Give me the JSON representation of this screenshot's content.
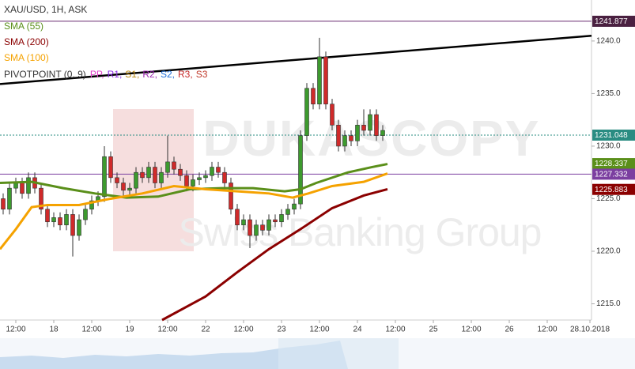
{
  "chart_data": {
    "type": "candlestick",
    "title": "XAU/USD, 1H, ASK",
    "xlim": [
      0,
      187
    ],
    "ylim": [
      1213.46,
      1243.9
    ],
    "yticks": [
      {
        "value": 1215,
        "label": "1215.0"
      },
      {
        "value": 1220,
        "label": "1220.0"
      },
      {
        "value": 1225,
        "label": "1225.0"
      },
      {
        "value": 1230,
        "label": "1230.0"
      },
      {
        "value": 1235,
        "label": "1235.0"
      },
      {
        "value": 1240,
        "label": "1240.0"
      }
    ],
    "xticks": [
      {
        "value": 5,
        "label": "12:00"
      },
      {
        "value": 17,
        "label": "18"
      },
      {
        "value": 29,
        "label": "12:00"
      },
      {
        "value": 41,
        "label": "19"
      },
      {
        "value": 53,
        "label": "12:00"
      },
      {
        "value": 65,
        "label": "22"
      },
      {
        "value": 77,
        "label": "12:00"
      },
      {
        "value": 89,
        "label": "23"
      },
      {
        "value": 101,
        "label": "12:00"
      },
      {
        "value": 113,
        "label": "24"
      },
      {
        "value": 125,
        "label": "12:00"
      },
      {
        "value": 137,
        "label": "25"
      },
      {
        "value": 149,
        "label": "12:00"
      },
      {
        "value": 161,
        "label": "26"
      },
      {
        "value": 173,
        "label": "12:00"
      },
      {
        "value": 186.5,
        "label": "28.10.2018"
      }
    ],
    "up_color": "#3d9a2e",
    "down_color": "#d02a2a",
    "x": [
      1,
      3,
      5,
      7,
      9,
      11,
      13,
      15,
      17,
      19,
      21,
      23,
      25,
      27,
      29,
      31,
      33,
      35,
      37,
      39,
      41,
      43,
      45,
      47,
      49,
      51,
      53,
      55,
      57,
      59,
      61,
      63,
      65,
      67,
      69,
      71,
      73,
      75,
      77,
      79,
      81,
      83,
      85,
      87,
      89,
      91,
      93,
      95,
      97,
      99,
      101,
      103,
      105,
      107,
      109,
      111,
      113,
      115,
      117,
      119,
      121
    ],
    "open": [
      1225.0,
      1224.0,
      1226.0,
      1226.5,
      1225.5,
      1227.0,
      1226.0,
      1224.0,
      1222.8,
      1223.2,
      1222.5,
      1223.5,
      1221.5,
      1223.0,
      1224.0,
      1224.8,
      1225.2,
      1229.0,
      1227.0,
      1226.5,
      1225.8,
      1226.0,
      1227.5,
      1227.0,
      1228.0,
      1226.5,
      1227.5,
      1228.5,
      1227.8,
      1227.2,
      1226.2,
      1226.8,
      1227.0,
      1227.2,
      1228.0,
      1227.5,
      1226.5,
      1224.0,
      1222.5,
      1223.0,
      1221.5,
      1222.5,
      1222.0,
      1223.0,
      1222.8,
      1223.5,
      1224.0,
      1224.5,
      1231.0,
      1235.5,
      1234.0,
      1238.5,
      1234.0,
      1232.0,
      1230.0,
      1231.0,
      1230.5,
      1232.0,
      1231.5,
      1233.0,
      1231.0
    ],
    "high": [
      1225.5,
      1226.5,
      1227.0,
      1227.0,
      1227.5,
      1227.5,
      1226.5,
      1224.5,
      1223.7,
      1223.7,
      1224.0,
      1224.0,
      1223.5,
      1224.5,
      1225.3,
      1225.7,
      1230.0,
      1229.5,
      1227.5,
      1227.0,
      1226.5,
      1228.0,
      1228.0,
      1228.5,
      1228.5,
      1228.0,
      1231.0,
      1229.0,
      1228.3,
      1227.7,
      1227.3,
      1227.5,
      1227.7,
      1228.5,
      1228.5,
      1228.0,
      1227.0,
      1224.5,
      1223.5,
      1223.5,
      1223.0,
      1223.0,
      1223.5,
      1223.5,
      1224.0,
      1224.5,
      1225.0,
      1231.5,
      1236.0,
      1236.0,
      1240.3,
      1239.0,
      1234.5,
      1232.5,
      1231.5,
      1231.5,
      1232.5,
      1233.5,
      1233.5,
      1233.5,
      1232.0
    ],
    "low": [
      1223.5,
      1223.5,
      1225.5,
      1225.0,
      1225.0,
      1225.5,
      1223.5,
      1222.3,
      1222.3,
      1222.0,
      1222.0,
      1219.5,
      1221.0,
      1222.5,
      1223.5,
      1224.3,
      1224.7,
      1226.5,
      1226.0,
      1225.3,
      1225.3,
      1225.5,
      1226.5,
      1226.5,
      1226.0,
      1226.0,
      1227.0,
      1227.3,
      1226.7,
      1225.7,
      1225.7,
      1226.3,
      1226.5,
      1226.7,
      1227.0,
      1226.0,
      1223.5,
      1222.0,
      1222.0,
      1220.3,
      1221.0,
      1221.5,
      1221.5,
      1222.3,
      1222.3,
      1223.0,
      1223.5,
      1224.0,
      1230.5,
      1233.5,
      1233.5,
      1233.5,
      1231.5,
      1229.5,
      1229.5,
      1230.0,
      1230.0,
      1231.0,
      1231.0,
      1230.5,
      1230.5
    ],
    "close": [
      1224.0,
      1226.0,
      1226.5,
      1225.5,
      1227.0,
      1226.0,
      1224.0,
      1222.8,
      1223.2,
      1222.5,
      1223.5,
      1221.5,
      1223.0,
      1224.0,
      1224.8,
      1225.2,
      1229.0,
      1227.0,
      1226.5,
      1225.8,
      1226.0,
      1227.5,
      1227.0,
      1228.0,
      1226.5,
      1227.5,
      1228.5,
      1227.8,
      1227.2,
      1226.2,
      1226.8,
      1227.0,
      1227.2,
      1228.0,
      1227.5,
      1226.5,
      1224.0,
      1222.5,
      1223.0,
      1221.5,
      1222.5,
      1222.0,
      1223.0,
      1222.8,
      1223.5,
      1224.0,
      1224.5,
      1231.0,
      1235.5,
      1234.0,
      1238.5,
      1234.0,
      1232.0,
      1230.0,
      1231.0,
      1230.5,
      1232.0,
      1231.5,
      1233.0,
      1231.0,
      1231.5
    ],
    "series": [
      {
        "name": "SMA (55)",
        "color": "#5a8f1a",
        "x": [
          0,
          10,
          20,
          30,
          40,
          50,
          60,
          70,
          80,
          90,
          95,
          100,
          110,
          117.5,
          122.5
        ],
        "values": [
          1226.5,
          1226.6,
          1226.0,
          1225.5,
          1225.1,
          1225.2,
          1225.9,
          1226.0,
          1226.0,
          1225.7,
          1225.9,
          1226.5,
          1227.5,
          1228.0,
          1228.3
        ]
      },
      {
        "name": "SMA (200)",
        "color": "#8b0000",
        "x": [
          51.25,
          65,
          75,
          85,
          95,
          105,
          115,
          122.5
        ],
        "values": [
          1213.46,
          1215.7,
          1218.0,
          1220.2,
          1222.1,
          1224.1,
          1225.3,
          1225.9
        ]
      },
      {
        "name": "SMA (100)",
        "color": "#f5a200",
        "x": [
          0,
          5,
          10,
          15,
          25,
          35,
          45,
          55,
          65,
          75,
          85,
          92.5,
          97.5,
          105,
          115,
          122.5
        ],
        "values": [
          1220.2,
          1222.1,
          1224.2,
          1224.4,
          1224.4,
          1225.0,
          1225.5,
          1226.2,
          1225.9,
          1225.7,
          1225.5,
          1225.1,
          1225.5,
          1226.2,
          1226.6,
          1227.4
        ]
      }
    ],
    "pivot_label": "PIVOTPOINT (0, 9)",
    "pivot_items": [
      {
        "text": "PP,",
        "color": "#e040c8"
      },
      {
        "text": "R1,",
        "color": "#8a2be2"
      },
      {
        "text": "S1,",
        "color": "#b8860b"
      },
      {
        "text": "R2,",
        "color": "#9c27b0"
      },
      {
        "text": "S2,",
        "color": "#1e6fd9"
      },
      {
        "text": "R3,",
        "color": "#c62828"
      },
      {
        "text": "S3",
        "color": "#c0392b"
      }
    ],
    "trendline": {
      "x": [
        0,
        187
      ],
      "values": [
        1235.9,
        1240.5
      ],
      "color": "#000000"
    },
    "levels": [
      {
        "value": 1241.877,
        "color": "#6a2c70"
      },
      {
        "value": 1227.332,
        "color": "#7b3fa0"
      }
    ],
    "current_price": {
      "value": 1231.048,
      "color": "#2a8c82"
    },
    "price_tags": [
      {
        "value": 1241.877,
        "color": "#4a2040"
      },
      {
        "value": 1231.048,
        "color": "#2a8c82"
      },
      {
        "value": 1228.337,
        "color": "#5a8f1a"
      },
      {
        "value": 1227.332,
        "color": "#7b3fa0"
      },
      {
        "value": 1225.883,
        "color": "#8b0000"
      }
    ],
    "watermark": [
      "DUKASCOPY",
      "Swiss Banking Group"
    ]
  }
}
